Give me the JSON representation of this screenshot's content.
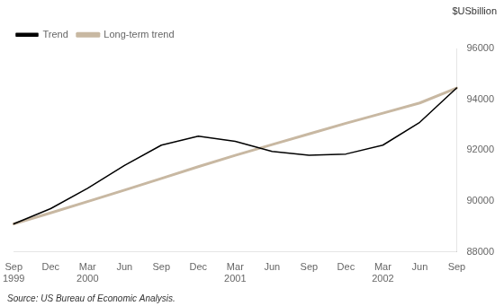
{
  "chart_data": {
    "type": "line",
    "ylabel": "$USbillion",
    "source": "Source: US Bureau of Economic Analysis.",
    "categories": [
      "Sep",
      "Dec",
      "Mar",
      "Jun",
      "Sep",
      "Dec",
      "Mar",
      "Jun",
      "Sep",
      "Dec",
      "Mar",
      "Jun",
      "Sep"
    ],
    "annotations": [
      {
        "x": 0,
        "text": "1999"
      },
      {
        "x": 2,
        "text": "2000"
      },
      {
        "x": 6,
        "text": "2001"
      },
      {
        "x": 10,
        "text": "2002"
      }
    ],
    "series": [
      {
        "name": "Trend",
        "color": "#000000",
        "values": [
          89100,
          89700,
          90500,
          91400,
          92200,
          92550,
          92350,
          91950,
          91800,
          91850,
          92200,
          93100,
          94450
        ]
      },
      {
        "name": "Long-term trend",
        "color": "#c8b8a2",
        "values": [
          89100,
          89530,
          89980,
          90430,
          90890,
          91350,
          91800,
          92220,
          92640,
          93060,
          93460,
          93860,
          94450
        ]
      }
    ],
    "ylim": [
      88000,
      96000
    ],
    "yticks": [
      88000,
      90000,
      92000,
      94000,
      96000
    ],
    "grid": false,
    "legend": "upper left"
  }
}
